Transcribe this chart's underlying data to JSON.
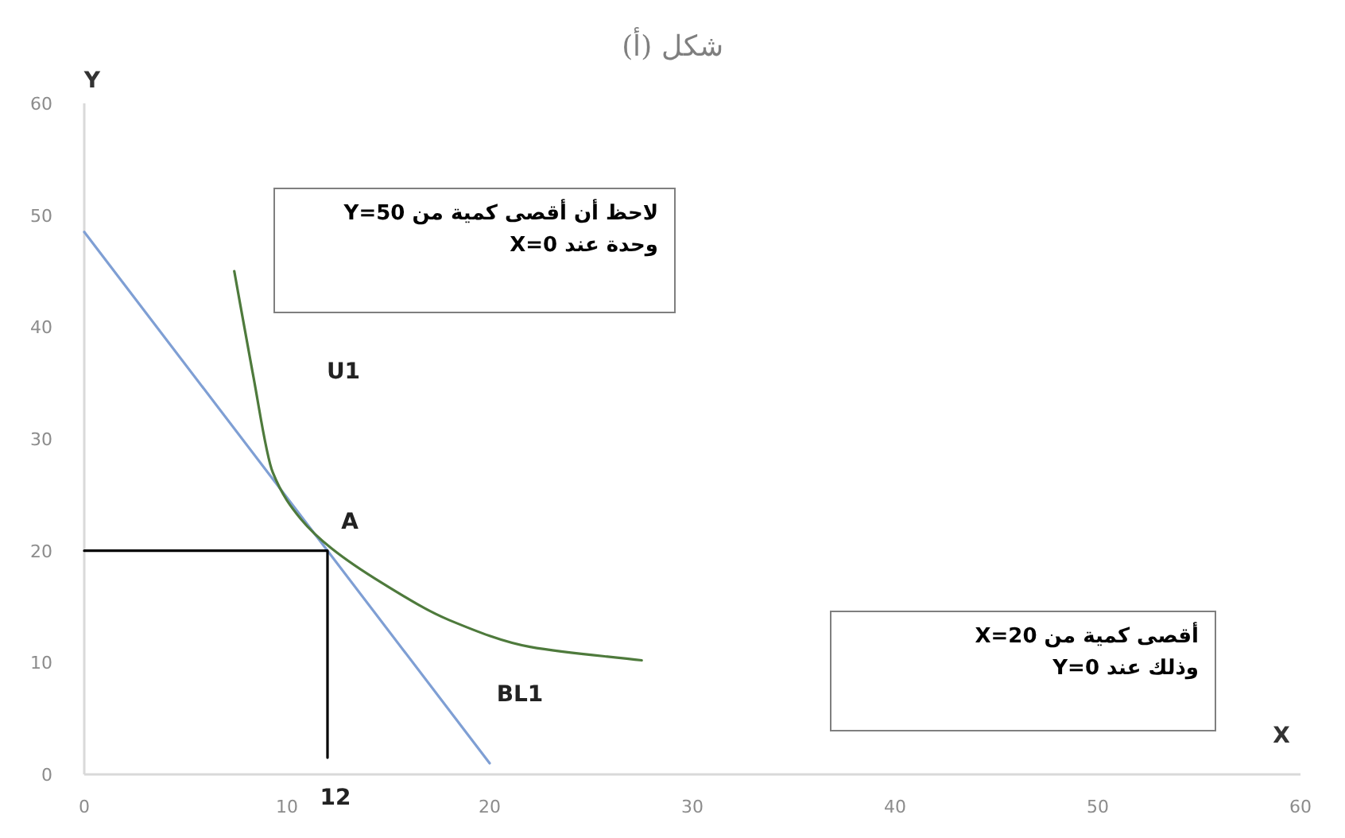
{
  "chart_data": {
    "type": "line",
    "title": "شكل (أ)",
    "xlabel": "X",
    "ylabel": "Y",
    "xlim": [
      0,
      60
    ],
    "ylim": [
      0,
      60
    ],
    "xticks": [
      0,
      10,
      20,
      30,
      40,
      50,
      60
    ],
    "yticks": [
      0,
      10,
      20,
      30,
      40,
      50,
      60
    ],
    "grid": false,
    "marker": "none",
    "line_style": "solid",
    "series": [
      {
        "color": "#7f9fd4",
        "x": [
          0,
          20
        ],
        "values": [
          48.5,
          1
        ]
      },
      {
        "color": "#4e7a3c",
        "x": [
          7.4,
          8.3,
          9.3,
          10.7,
          12.2,
          14.7,
          18,
          22,
          27.5
        ],
        "values": [
          45,
          36,
          27,
          22.8,
          20.2,
          17.1,
          13.8,
          11.4,
          10.2
        ]
      },
      {
        "color": "#000000",
        "x": [
          0,
          12,
          12
        ],
        "values": [
          20,
          20,
          1.5
        ]
      }
    ],
    "annotations": [
      {
        "text": "A",
        "x": 12,
        "y": 20
      },
      "U1",
      "BL1",
      "12",
      "لاحظ أن أقصى كمية من  Y=50\nوحدة عند X=0",
      "أقصى كمية من  X=20\nوذلك عند Y=0"
    ]
  }
}
